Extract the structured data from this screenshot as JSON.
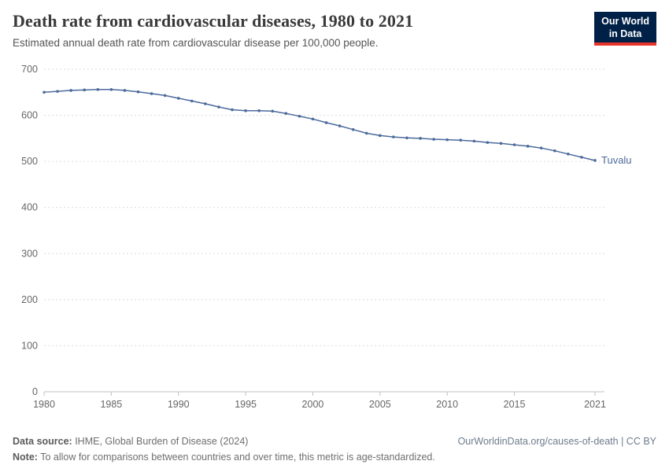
{
  "header": {
    "title": "Death rate from cardiovascular diseases, 1980 to 2021",
    "subtitle": "Estimated annual death rate from cardiovascular disease per 100,000 people.",
    "logo": {
      "line1": "Our World",
      "line2": "in Data"
    }
  },
  "chart_data": {
    "type": "line",
    "title": "Death rate from cardiovascular diseases, 1980 to 2021",
    "xlabel": "",
    "ylabel": "Estimated annual death rate from cardiovascular disease per 100,000 people",
    "x": [
      1980,
      1981,
      1982,
      1983,
      1984,
      1985,
      1986,
      1987,
      1988,
      1989,
      1990,
      1991,
      1992,
      1993,
      1994,
      1995,
      1996,
      1997,
      1998,
      1999,
      2000,
      2001,
      2002,
      2003,
      2004,
      2005,
      2006,
      2007,
      2008,
      2009,
      2010,
      2011,
      2012,
      2013,
      2014,
      2015,
      2016,
      2017,
      2018,
      2019,
      2020,
      2021
    ],
    "series": [
      {
        "name": "Tuvalu",
        "values": [
          650,
          652,
          654,
          655,
          656,
          656,
          654,
          651,
          647,
          643,
          637,
          631,
          625,
          618,
          612,
          610,
          610,
          609,
          604,
          598,
          592,
          584,
          577,
          569,
          561,
          556,
          553,
          551,
          550,
          548,
          547,
          546,
          544,
          541,
          539,
          536,
          533,
          529,
          523,
          516,
          509,
          502
        ]
      }
    ],
    "ylim": [
      0,
      700
    ],
    "yticks": [
      0,
      100,
      200,
      300,
      400,
      500,
      600,
      700
    ],
    "xticks": [
      1980,
      1985,
      1990,
      1995,
      2000,
      2005,
      2010,
      2015,
      2021
    ],
    "grid": "horizontal-dashed",
    "legend_position": "end-of-line-label",
    "line_color": "#4c6a9c",
    "grid_color": "#dcdcdc",
    "axis_text_color": "#666666"
  },
  "colors": {
    "logo_bg": "#002147",
    "logo_accent": "#e8352a",
    "series_blue": "#4c6a9c"
  },
  "footer": {
    "datasource_label": "Data source:",
    "datasource_text": " IHME, Global Burden of Disease (2024)",
    "link": "OurWorldinData.org/causes-of-death | CC BY",
    "note_label": "Note:",
    "note_text": " To allow for comparisons between countries and over time, this metric is age-standardized."
  }
}
